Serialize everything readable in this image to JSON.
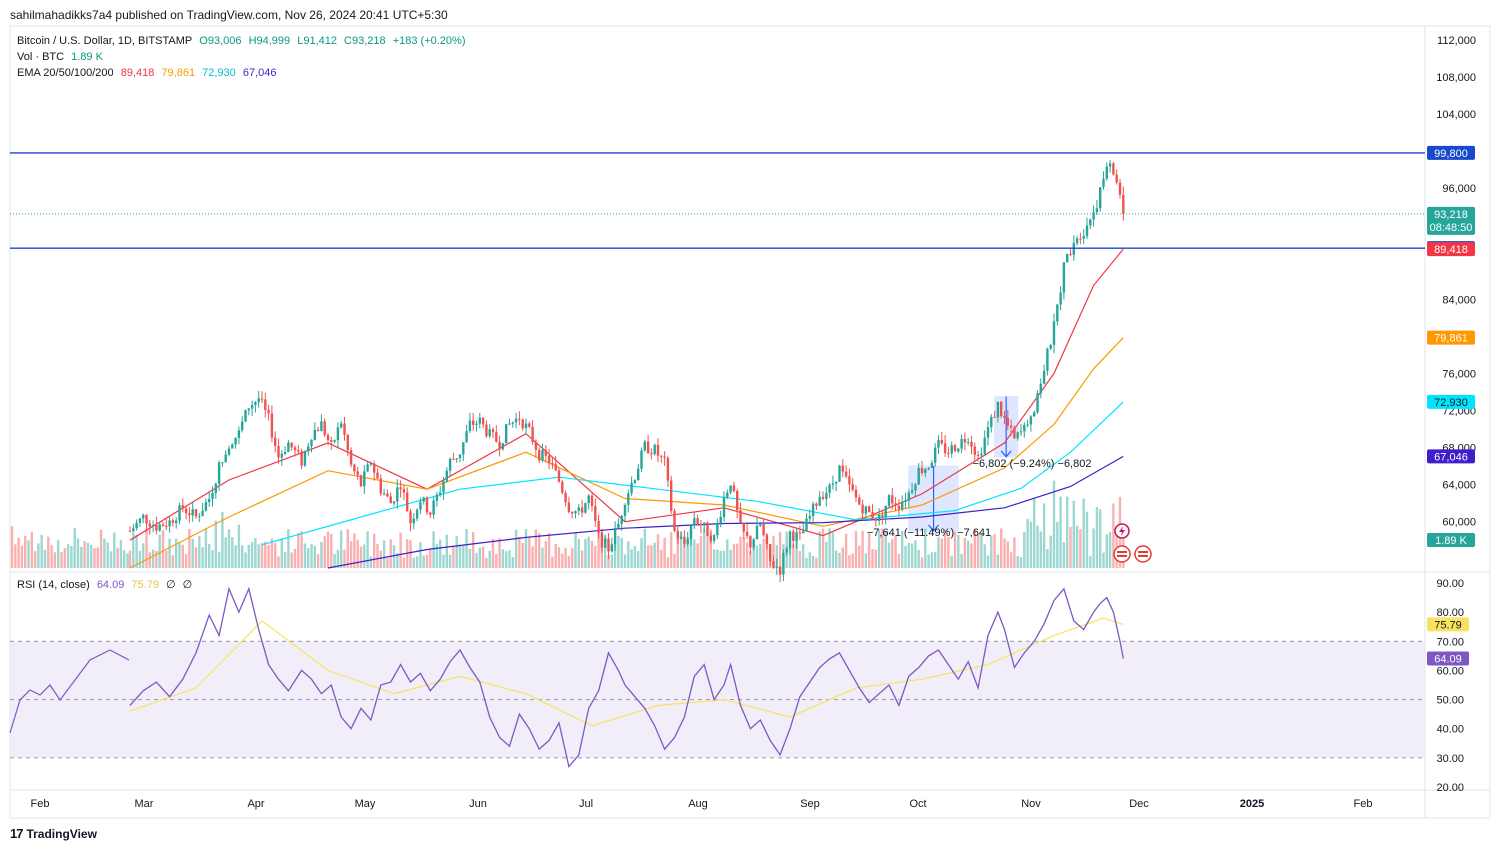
{
  "header": {
    "published": "sahilmahadikks7a4 published on TradingView.com, Nov 26, 2024 20:41 UTC+5:30"
  },
  "legend": {
    "symbol": "Bitcoin / U.S. Dollar, 1D, BITSTAMP",
    "ohlc": [
      "O93,006",
      "H94,999",
      "L91,412",
      "C93,218",
      "+183 (+0.20%)"
    ],
    "volume_label": "Vol · BTC",
    "volume_value": "1.89 K",
    "ema_label": "EMA 20/50/100/200",
    "ema_values": [
      "89,418",
      "79,861",
      "72,930",
      "67,046"
    ],
    "rsi_label": "RSI (14, close)",
    "rsi_values": [
      "64.09",
      "75.79",
      "∅",
      "∅"
    ]
  },
  "colors": {
    "up": "#26a69a",
    "down": "#ef5350",
    "ema20": "#f23645",
    "ema50": "#ff9800",
    "ema100": "#00e5ff",
    "ema200": "#3f1fc9",
    "level_line": "#1848cc",
    "rsi": "#7e57c2",
    "rsi_ma": "#f7e35e",
    "rsi_band": "#ede7f6"
  },
  "chart_data": {
    "type": "candlestick",
    "price_axis_ticks": [
      "112,000",
      "108,000",
      "104,000",
      "96,000",
      "84,000",
      "76,000",
      "72,000",
      "68,000",
      "64,000",
      "60,000"
    ],
    "ylim": [
      55000,
      113500
    ],
    "x_axis_ticks": [
      "Feb",
      "Mar",
      "Apr",
      "May",
      "Jun",
      "Jul",
      "Aug",
      "Sep",
      "Oct",
      "Nov",
      "Dec",
      "2025",
      "Feb"
    ],
    "horizontal_levels": [
      {
        "label": "99,800",
        "value": 99800
      },
      {
        "label": "89,520",
        "value": 89520
      }
    ],
    "price_tags": [
      {
        "label": "93,218",
        "sub": "08:48:50",
        "value": 93218,
        "color": "#26a69a"
      },
      {
        "label": "89,418",
        "value": 89418,
        "color": "#f23645"
      },
      {
        "label": "79,861",
        "value": 79861,
        "color": "#ff9800"
      },
      {
        "label": "72,930",
        "value": 72930,
        "color": "#00e5ff"
      },
      {
        "label": "67,046",
        "value": 67046,
        "color": "#3f1fc9"
      },
      {
        "label": "1.89 K",
        "value": 0,
        "color": "#26a69a"
      }
    ],
    "annotations": [
      {
        "label": "−6,802 (−9.24%) −6,802"
      },
      {
        "label": "−7,641 (−11.49%) −7,641"
      }
    ],
    "price_path": [
      [
        0,
        59000
      ],
      [
        4,
        60500
      ],
      [
        8,
        59500
      ],
      [
        12,
        60000
      ],
      [
        16,
        61500
      ],
      [
        20,
        60500
      ],
      [
        24,
        62500
      ],
      [
        28,
        67000
      ],
      [
        30,
        68500
      ],
      [
        33,
        69500
      ],
      [
        36,
        72500
      ],
      [
        39,
        73300
      ],
      [
        42,
        71000
      ],
      [
        45,
        67000
      ],
      [
        48,
        68500
      ],
      [
        52,
        66500
      ],
      [
        55,
        69500
      ],
      [
        58,
        70500
      ],
      [
        61,
        68000
      ],
      [
        64,
        70800
      ],
      [
        67,
        66000
      ],
      [
        70,
        64000
      ],
      [
        73,
        66500
      ],
      [
        76,
        63500
      ],
      [
        79,
        62000
      ],
      [
        82,
        64200
      ],
      [
        85,
        60000
      ],
      [
        88,
        62500
      ],
      [
        91,
        61000
      ],
      [
        94,
        63500
      ],
      [
        97,
        66500
      ],
      [
        100,
        67500
      ],
      [
        103,
        70500
      ],
      [
        106,
        70800
      ],
      [
        109,
        69300
      ],
      [
        112,
        68500
      ],
      [
        115,
        70500
      ],
      [
        118,
        71300
      ],
      [
        121,
        69700
      ],
      [
        124,
        67300
      ],
      [
        127,
        66600
      ],
      [
        130,
        64400
      ],
      [
        133,
        61600
      ],
      [
        136,
        60900
      ],
      [
        139,
        62600
      ],
      [
        142,
        58300
      ],
      [
        145,
        57100
      ],
      [
        148,
        59700
      ],
      [
        150,
        62500
      ],
      [
        153,
        65000
      ],
      [
        156,
        68100
      ],
      [
        159,
        67700
      ],
      [
        162,
        66300
      ],
      [
        165,
        58900
      ],
      [
        168,
        57600
      ],
      [
        171,
        60500
      ],
      [
        174,
        59300
      ],
      [
        177,
        58200
      ],
      [
        180,
        62600
      ],
      [
        182,
        64400
      ],
      [
        185,
        59200
      ],
      [
        188,
        57600
      ],
      [
        191,
        59700
      ],
      [
        194,
        55600
      ],
      [
        197,
        54900
      ],
      [
        200,
        58800
      ],
      [
        203,
        58200
      ],
      [
        206,
        60500
      ],
      [
        209,
        62900
      ],
      [
        212,
        63500
      ],
      [
        215,
        65700
      ],
      [
        218,
        63700
      ],
      [
        221,
        61900
      ],
      [
        224,
        60900
      ],
      [
        227,
        60300
      ],
      [
        230,
        62500
      ],
      [
        233,
        61900
      ],
      [
        236,
        63100
      ],
      [
        239,
        65500
      ],
      [
        242,
        66100
      ],
      [
        245,
        68200
      ],
      [
        248,
        67600
      ],
      [
        251,
        68400
      ],
      [
        254,
        69300
      ],
      [
        257,
        67000
      ],
      [
        260,
        70000
      ],
      [
        263,
        72600
      ],
      [
        265,
        71000
      ],
      [
        268,
        68800
      ],
      [
        271,
        70000
      ],
      [
        274,
        72500
      ],
      [
        277,
        76500
      ],
      [
        280,
        81000
      ],
      [
        283,
        87500
      ],
      [
        286,
        90500
      ],
      [
        289,
        91500
      ],
      [
        292,
        93500
      ],
      [
        294,
        95500
      ],
      [
        296,
        98500
      ],
      [
        298,
        97700
      ],
      [
        300,
        95500
      ],
      [
        301,
        93218
      ]
    ],
    "ema_series": [
      {
        "name": "EMA 20",
        "values": [
          [
            0,
            58000
          ],
          [
            30,
            64500
          ],
          [
            60,
            68500
          ],
          [
            90,
            63500
          ],
          [
            120,
            69500
          ],
          [
            150,
            60000
          ],
          [
            180,
            61500
          ],
          [
            210,
            58500
          ],
          [
            240,
            63000
          ],
          [
            265,
            68500
          ],
          [
            280,
            76000
          ],
          [
            292,
            85500
          ],
          [
            301,
            89418
          ]
        ]
      },
      {
        "name": "EMA 50",
        "values": [
          [
            0,
            55000
          ],
          [
            30,
            60500
          ],
          [
            60,
            65500
          ],
          [
            90,
            63500
          ],
          [
            120,
            67500
          ],
          [
            150,
            62500
          ],
          [
            180,
            61800
          ],
          [
            210,
            59500
          ],
          [
            240,
            61800
          ],
          [
            265,
            65800
          ],
          [
            280,
            70500
          ],
          [
            292,
            76500
          ],
          [
            301,
            79861
          ]
        ]
      },
      {
        "name": "EMA 100",
        "values": [
          [
            40,
            57500
          ],
          [
            70,
            60500
          ],
          [
            100,
            63500
          ],
          [
            130,
            64800
          ],
          [
            160,
            63500
          ],
          [
            190,
            62200
          ],
          [
            220,
            60200
          ],
          [
            250,
            61200
          ],
          [
            270,
            63600
          ],
          [
            285,
            67500
          ],
          [
            301,
            72930
          ]
        ]
      },
      {
        "name": "EMA 200",
        "values": [
          [
            60,
            55000
          ],
          [
            90,
            57000
          ],
          [
            120,
            58300
          ],
          [
            150,
            59300
          ],
          [
            180,
            59800
          ],
          [
            210,
            59900
          ],
          [
            240,
            60500
          ],
          [
            265,
            61500
          ],
          [
            285,
            63800
          ],
          [
            301,
            67046
          ]
        ]
      }
    ],
    "rsi": {
      "axis_ticks": [
        "90.00",
        "80.00",
        "70.00",
        "60.00",
        "50.00",
        "40.00",
        "30.00",
        "20.00"
      ],
      "ylim": [
        20,
        90
      ],
      "band": [
        30,
        70
      ],
      "tags": [
        {
          "label": "75.79",
          "value": 75.79,
          "color": "#f7e35e"
        },
        {
          "label": "64.09",
          "value": 64.09,
          "color": "#7e57c2"
        }
      ],
      "values": [
        [
          0,
          48
        ],
        [
          4,
          53
        ],
        [
          8,
          56
        ],
        [
          12,
          51
        ],
        [
          16,
          57
        ],
        [
          20,
          66
        ],
        [
          24,
          79
        ],
        [
          27,
          72
        ],
        [
          30,
          88
        ],
        [
          33,
          80
        ],
        [
          36,
          88
        ],
        [
          39,
          74
        ],
        [
          42,
          62
        ],
        [
          45,
          57
        ],
        [
          48,
          53
        ],
        [
          52,
          60
        ],
        [
          55,
          57
        ],
        [
          58,
          52
        ],
        [
          61,
          55
        ],
        [
          64,
          44
        ],
        [
          67,
          40
        ],
        [
          70,
          47
        ],
        [
          73,
          43
        ],
        [
          76,
          55
        ],
        [
          79,
          56
        ],
        [
          82,
          62
        ],
        [
          85,
          56
        ],
        [
          88,
          59
        ],
        [
          91,
          53
        ],
        [
          94,
          57
        ],
        [
          97,
          63
        ],
        [
          100,
          67
        ],
        [
          103,
          61
        ],
        [
          106,
          56
        ],
        [
          109,
          44
        ],
        [
          112,
          37
        ],
        [
          115,
          34
        ],
        [
          118,
          45
        ],
        [
          121,
          40
        ],
        [
          124,
          33
        ],
        [
          127,
          36
        ],
        [
          130,
          42
        ],
        [
          133,
          27
        ],
        [
          136,
          31
        ],
        [
          139,
          47
        ],
        [
          142,
          53
        ],
        [
          145,
          66
        ],
        [
          148,
          60
        ],
        [
          150,
          55
        ],
        [
          153,
          51
        ],
        [
          156,
          47
        ],
        [
          159,
          41
        ],
        [
          162,
          33
        ],
        [
          165,
          37
        ],
        [
          168,
          44
        ],
        [
          171,
          58
        ],
        [
          174,
          62
        ],
        [
          177,
          50
        ],
        [
          180,
          55
        ],
        [
          182,
          62
        ],
        [
          185,
          48
        ],
        [
          188,
          40
        ],
        [
          191,
          43
        ],
        [
          194,
          36
        ],
        [
          197,
          31
        ],
        [
          200,
          40
        ],
        [
          203,
          51
        ],
        [
          206,
          56
        ],
        [
          209,
          61
        ],
        [
          212,
          64
        ],
        [
          215,
          66
        ],
        [
          218,
          60
        ],
        [
          221,
          54
        ],
        [
          224,
          49
        ],
        [
          227,
          52
        ],
        [
          230,
          55
        ],
        [
          233,
          48
        ],
        [
          236,
          58
        ],
        [
          239,
          61
        ],
        [
          242,
          65
        ],
        [
          245,
          67
        ],
        [
          248,
          62
        ],
        [
          251,
          57
        ],
        [
          254,
          63
        ],
        [
          257,
          54
        ],
        [
          260,
          72
        ],
        [
          263,
          80
        ],
        [
          265,
          74
        ],
        [
          268,
          61
        ],
        [
          271,
          66
        ],
        [
          274,
          70
        ],
        [
          277,
          76
        ],
        [
          280,
          84
        ],
        [
          283,
          88
        ],
        [
          286,
          77
        ],
        [
          289,
          74
        ],
        [
          292,
          80
        ],
        [
          294,
          83
        ],
        [
          296,
          85
        ],
        [
          298,
          80
        ],
        [
          300,
          70
        ],
        [
          301,
          64.09
        ]
      ],
      "ma_values": [
        [
          0,
          46
        ],
        [
          20,
          54
        ],
        [
          40,
          77
        ],
        [
          60,
          60
        ],
        [
          80,
          52
        ],
        [
          100,
          58
        ],
        [
          120,
          52
        ],
        [
          140,
          41
        ],
        [
          160,
          48
        ],
        [
          180,
          50
        ],
        [
          200,
          44
        ],
        [
          220,
          54
        ],
        [
          240,
          57
        ],
        [
          260,
          62
        ],
        [
          280,
          72
        ],
        [
          295,
          78
        ],
        [
          301,
          75.79
        ]
      ]
    }
  }
}
